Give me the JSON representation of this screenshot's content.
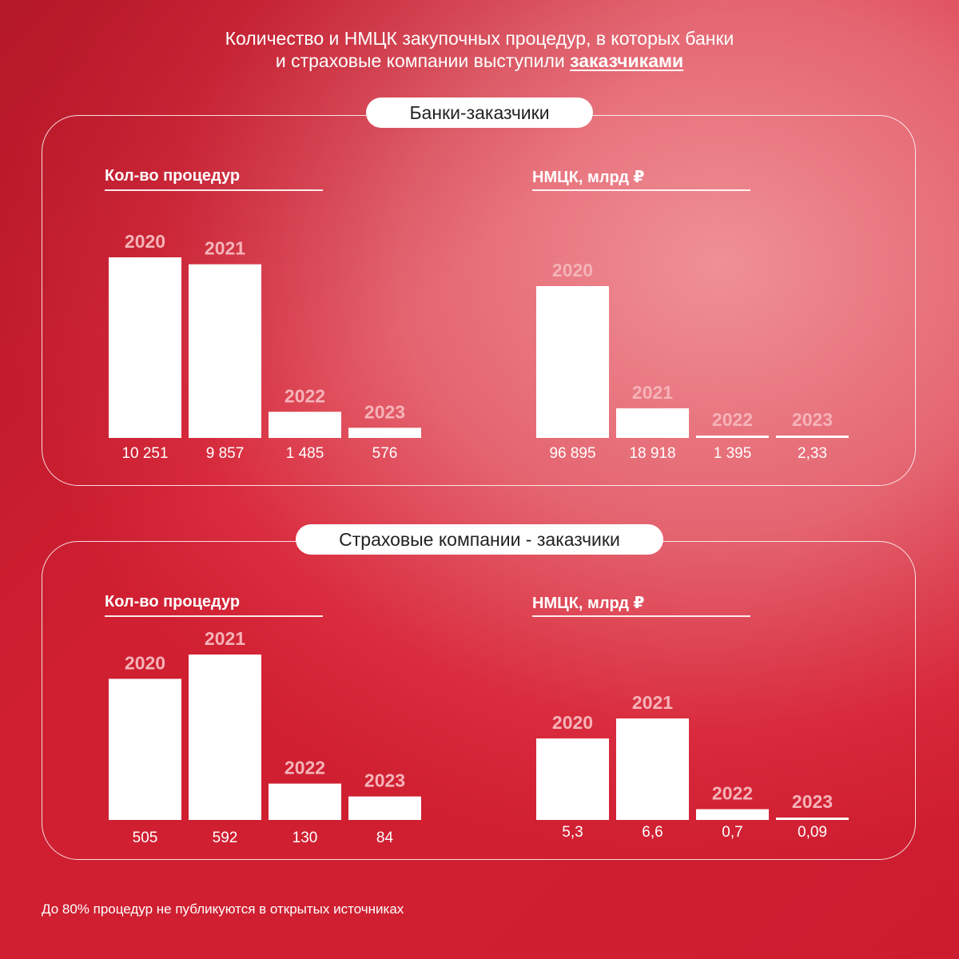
{
  "title": {
    "line1": "Количество и НМЦК закупочных процедур, в которых банки",
    "line2_prefix": "и страховые компании выступили ",
    "line2_emph": "заказчиками"
  },
  "sections": [
    {
      "label": "Банки-заказчики"
    },
    {
      "label": "Страховые компании - заказчики"
    }
  ],
  "footnote": "До 80% процедур не публикуются в открытых источниках",
  "colors": {
    "bar": "#ffffff",
    "year_label": "#f5b3b8",
    "panel_border": "#ffffff",
    "pill_bg": "#ffffff",
    "pill_text": "#222222"
  },
  "chart_data": [
    {
      "type": "bar",
      "title": "Кол-во процедур",
      "categories": [
        "2020",
        "2021",
        "2022",
        "2023"
      ],
      "values": [
        10251,
        9857,
        1485,
        576
      ],
      "value_labels": [
        "10 251",
        "9 857",
        "1 485",
        "576"
      ]
    },
    {
      "type": "bar",
      "title": "НМЦК, млрд ₽",
      "categories": [
        "2020",
        "2021",
        "2022",
        "2023"
      ],
      "values": [
        96895,
        18918,
        1395,
        2.33
      ],
      "value_labels": [
        "96 895",
        "18 918",
        "1 395",
        "2,33"
      ]
    },
    {
      "type": "bar",
      "title": "Кол-во процедур",
      "categories": [
        "2020",
        "2021",
        "2022",
        "2023"
      ],
      "values": [
        505,
        592,
        130,
        84
      ],
      "value_labels": [
        "505",
        "592",
        "130",
        "84"
      ]
    },
    {
      "type": "bar",
      "title": "НМЦК, млрд ₽",
      "categories": [
        "2020",
        "2021",
        "2022",
        "2023"
      ],
      "values": [
        5.3,
        6.6,
        0.7,
        0.09
      ],
      "value_labels": [
        "5,3",
        "6,6",
        "0,7",
        "0,09"
      ]
    }
  ]
}
